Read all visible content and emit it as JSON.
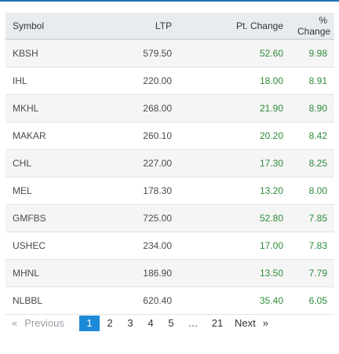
{
  "table": {
    "headers": {
      "symbol": "Symbol",
      "ltp": "LTP",
      "pt_change": "Pt. Change",
      "pct_change": "% Change"
    },
    "rows": [
      {
        "symbol": "KBSH",
        "ltp": "579.50",
        "pt_change": "52.60",
        "pct_change": "9.98"
      },
      {
        "symbol": "IHL",
        "ltp": "220.00",
        "pt_change": "18.00",
        "pct_change": "8.91"
      },
      {
        "symbol": "MKHL",
        "ltp": "268.00",
        "pt_change": "21.90",
        "pct_change": "8.90"
      },
      {
        "symbol": "MAKAR",
        "ltp": "260.10",
        "pt_change": "20.20",
        "pct_change": "8.42"
      },
      {
        "symbol": "CHL",
        "ltp": "227.00",
        "pt_change": "17.30",
        "pct_change": "8.25"
      },
      {
        "symbol": "MEL",
        "ltp": "178.30",
        "pt_change": "13.20",
        "pct_change": "8.00"
      },
      {
        "symbol": "GMFBS",
        "ltp": "725.00",
        "pt_change": "52.80",
        "pct_change": "7.85"
      },
      {
        "symbol": "USHEC",
        "ltp": "234.00",
        "pt_change": "17.00",
        "pct_change": "7.83"
      },
      {
        "symbol": "MHNL",
        "ltp": "186.90",
        "pt_change": "13.50",
        "pct_change": "7.79"
      },
      {
        "symbol": "NLBBL",
        "ltp": "620.40",
        "pt_change": "35.40",
        "pct_change": "6.05"
      }
    ]
  },
  "pagination": {
    "prev_arrow": "«",
    "prev_label": "Previous",
    "pages": [
      "1",
      "2",
      "3",
      "4",
      "5"
    ],
    "current_page": "1",
    "ellipsis": "…",
    "last_page": "21",
    "next_label": "Next",
    "next_arrow": "»"
  },
  "colors": {
    "accent": "#1c8ad6",
    "positive": "#2e8b3a",
    "header_bg": "#e9ecef",
    "stripe_bg": "#f5f5f5"
  }
}
